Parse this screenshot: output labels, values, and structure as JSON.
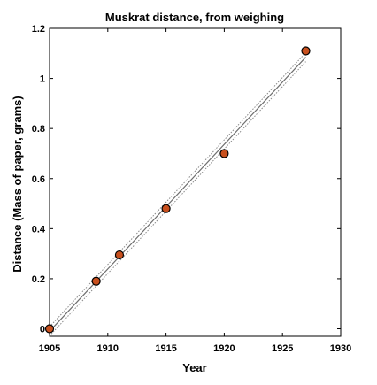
{
  "chart_data": {
    "type": "scatter",
    "title": "Muskrat distance, from weighing",
    "xlabel": "Year",
    "ylabel": "Distance (Mass of paper, grams)",
    "xlim": [
      1905,
      1930
    ],
    "ylim": [
      -0.03,
      1.2
    ],
    "xticks": [
      1905,
      1910,
      1915,
      1920,
      1925,
      1930
    ],
    "xtick_labels": [
      "1905",
      "1910",
      "1915",
      "1920",
      "1925",
      "1930"
    ],
    "yticks": [
      0,
      0.2,
      0.4,
      0.6,
      0.8,
      1,
      1.2
    ],
    "ytick_labels": [
      "0",
      "0.2",
      "0.4",
      "0.6",
      "0.8",
      "1",
      "1.2"
    ],
    "grid": false,
    "box": true,
    "series": [
      {
        "kind": "points",
        "x": [
          1905,
          1909,
          1911,
          1915,
          1920,
          1927
        ],
        "y": [
          0.0,
          0.19,
          0.295,
          0.48,
          0.7,
          1.11
        ],
        "color": "#c8501e",
        "edge_color": "#000000"
      }
    ],
    "fit": {
      "x_range": [
        1905,
        1927
      ],
      "y_at_start": -0.01,
      "y_at_end": 1.085,
      "line_color": "#6e6e6e",
      "band_color": "#8a8a8a",
      "band_width": 0.018
    }
  }
}
